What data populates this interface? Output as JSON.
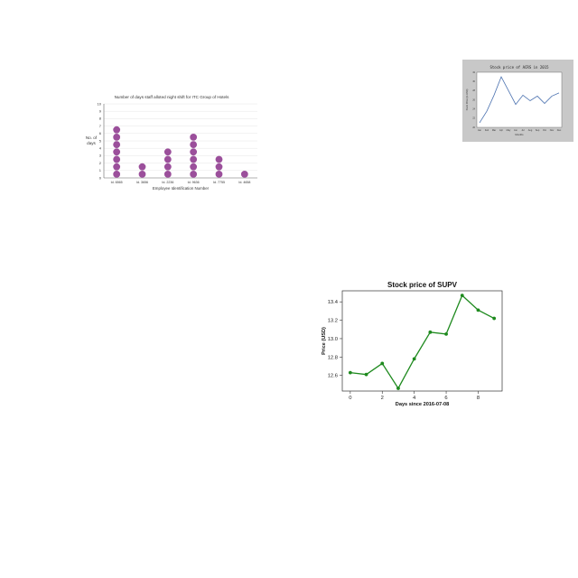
{
  "chart_data": [
    {
      "type": "scatter",
      "subtype": "dot-plot",
      "title": "Number of days staff alloted night shift for ITC Group of Hotels",
      "xlabel": "Employee Identification Number",
      "ylabel": [
        "No. of",
        "days"
      ],
      "categories": [
        "Id. 6565",
        "Id. 3656",
        "Id. 2236",
        "Id. 9636",
        "Id. 7755",
        "Id. 4658"
      ],
      "values": [
        7,
        2,
        4,
        6,
        3,
        1
      ],
      "ylim": [
        0,
        10
      ],
      "yticks": [
        "0",
        "1",
        "2",
        "3",
        "4",
        "5",
        "6",
        "7",
        "8",
        "9",
        "10"
      ],
      "grid": true,
      "colors": {
        "dot": "#9b4f9b",
        "grid": "#e6e6e6",
        "axis": "#666666"
      }
    },
    {
      "type": "line",
      "title": "Stock price of ACRS in 2015",
      "xlabel": "Months",
      "ylabel": "Stock Price (in USD)",
      "categories": [
        "Jan",
        "Feb",
        "Mar",
        "Apr",
        "May",
        "Jun",
        "Jul",
        "Aug",
        "Sep",
        "Oct",
        "Nov",
        "Dec"
      ],
      "values": [
        21.0,
        23.5,
        27.0,
        31.0,
        28.0,
        25.0,
        27.0,
        25.8,
        26.8,
        25.2,
        26.8,
        27.5
      ],
      "ylim": [
        20,
        32
      ],
      "yticks": [
        "20",
        "22",
        "24",
        "26",
        "28",
        "30",
        "32"
      ],
      "grid": false,
      "colors": {
        "line": "#4c72b0",
        "background": "#c8c8c8",
        "plot": "#ffffff"
      }
    },
    {
      "type": "line",
      "title": "Stock price of SUPV",
      "xlabel": "Days since 2016-07-08",
      "ylabel": "Price (USD)",
      "x": [
        0,
        1,
        2,
        3,
        4,
        5,
        6,
        7,
        8,
        9
      ],
      "values": [
        12.63,
        12.61,
        12.73,
        12.46,
        12.78,
        13.07,
        13.05,
        13.47,
        13.31,
        13.22
      ],
      "xlim": [
        -0.5,
        9.5
      ],
      "ylim": [
        12.43,
        13.52
      ],
      "xticks": [
        "0",
        "2",
        "4",
        "6",
        "8"
      ],
      "yticks": [
        "12.6",
        "12.8",
        "13.0",
        "13.2",
        "13.4"
      ],
      "grid": false,
      "colors": {
        "line": "#1e8a1e"
      }
    }
  ]
}
